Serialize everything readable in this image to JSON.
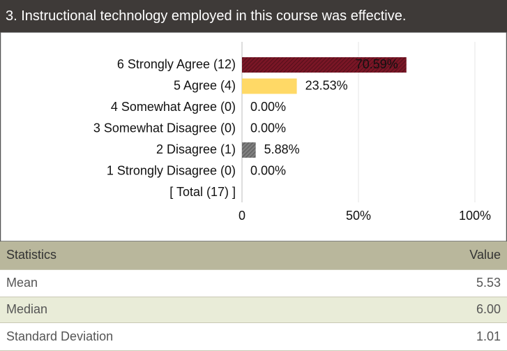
{
  "header": {
    "title": "3. Instructional technology employed in this course was effective."
  },
  "chart_data": {
    "type": "bar",
    "orientation": "horizontal",
    "categories": [
      "6 Strongly Agree (12)",
      "5 Agree (4)",
      "4 Somewhat Agree (0)",
      "3 Somewhat Disagree (0)",
      "2 Disagree (1)",
      "1 Strongly Disagree (0)",
      "[ Total (17) ]"
    ],
    "values": [
      70.59,
      23.53,
      0,
      0,
      5.88,
      0,
      null
    ],
    "value_labels": [
      "70.59%",
      "23.53%",
      "0.00%",
      "0.00%",
      "5.88%",
      "0.00%",
      null
    ],
    "colors": [
      "#7a1626",
      "#ffd966",
      "#999999",
      "#999999",
      "#7f7f7f",
      "#999999",
      null
    ],
    "hatch": [
      true,
      false,
      false,
      false,
      true,
      false,
      false
    ],
    "xlim": [
      0,
      100
    ],
    "xticks": [
      0,
      {
        "value": 50,
        "label": "50%"
      },
      {
        "value": 100,
        "label": "100%"
      }
    ],
    "grid": true
  },
  "table": {
    "header": [
      "Statistics",
      "Value"
    ],
    "rows": [
      [
        "Mean",
        "5.53"
      ],
      [
        "Median",
        "6.00"
      ],
      [
        "Standard Deviation",
        "1.01"
      ]
    ]
  }
}
